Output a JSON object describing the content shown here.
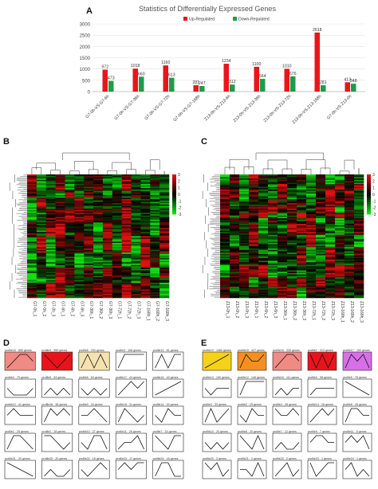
{
  "panel_labels": {
    "a": "A",
    "b": "B",
    "c": "C",
    "d": "D",
    "e": "E"
  },
  "chart_data": [
    {
      "type": "bar",
      "title": "Statistics of Differentially Expressed Genes",
      "categories": [
        "G7-0h-VS-G7-6h",
        "G7-0h-VS-G7-36h",
        "G7-0h-VS-G7-72h",
        "G7-0h-VS-G7-168h",
        "Z13-0h-VS-Z13-6h",
        "Z13-0h-VS-Z13-36h",
        "Z13-0h-VS-Z13-72h",
        "Z13-0h-VS-Z13-168h",
        "G7-0h-VS-Z13-0h"
      ],
      "series": [
        {
          "name": "Up-Regulated",
          "color": "#e8161b",
          "values": [
            972,
            1018,
            1160,
            281,
            1234,
            1100,
            1010,
            2618,
            413
          ]
        },
        {
          "name": "Down-Regulated",
          "color": "#1e9c4a",
          "values": [
            473,
            660,
            613,
            247,
            312,
            564,
            676,
            281,
            348
          ]
        }
      ],
      "ylim": [
        0,
        3000
      ],
      "yticks": [
        0,
        500,
        1000,
        1500,
        2000,
        2500,
        3000
      ],
      "legend": "top-center",
      "grid": true
    },
    {
      "type": "heatmap",
      "columns": [
        "G7-0h_1",
        "G7-0h_2",
        "G7-0h_3",
        "G7-6h_1",
        "G7-6h_2",
        "G7-6h_3",
        "G7-36h_1",
        "G7-36h_2",
        "G7-36h_3",
        "G7-72h_1",
        "G7-72h_2",
        "G7-72h_3",
        "G7-168h_1",
        "G7-168h_2",
        "G7-168h_3"
      ],
      "scale": [
        3,
        2,
        1,
        0,
        -1,
        -2,
        -3
      ],
      "colors": {
        "high": "#e01010",
        "mid": "#000000",
        "low": "#10e010"
      }
    },
    {
      "type": "heatmap",
      "columns": [
        "Z13-0h_1",
        "Z13-0h_2",
        "Z13-0h_3",
        "Z13-6h_1",
        "Z13-6h_2",
        "Z13-6h_3",
        "Z13-36h_1",
        "Z13-36h_2",
        "Z13-36h_3",
        "Z13-72h_1",
        "Z13-72h_2",
        "Z13-72h_3",
        "Z13-168h_1",
        "Z13-168h_2",
        "Z13-168h_3"
      ],
      "scale": [
        3,
        2,
        1,
        0,
        -1,
        -2,
        -3
      ],
      "colors": {
        "high": "#e01010",
        "mid": "#000000",
        "low": "#10e010"
      }
    }
  ],
  "profiles_d": [
    {
      "label": "profile16 · 850 genes",
      "color": "#f08a84",
      "points": [
        0,
        1,
        2,
        2,
        1
      ]
    },
    {
      "label": "profile4 · 550 genes",
      "color": "#e8141c",
      "points": [
        2,
        1,
        0,
        1,
        2
      ]
    },
    {
      "label": "profile8 · 233 genes",
      "color": "#f4e2b0",
      "points": [
        0,
        2,
        0,
        2,
        0
      ]
    },
    {
      "label": "profile3 · 108 genes",
      "color": "#ffffff",
      "points": [
        0,
        2,
        2,
        2,
        2
      ]
    },
    {
      "label": "profile13 · 81 genes",
      "color": "#ffffff",
      "points": [
        0,
        2,
        0,
        2,
        2
      ]
    },
    {
      "label": "profile0 · 75 genes",
      "color": "#ffffff",
      "points": [
        1,
        0,
        0,
        0,
        1
      ]
    },
    {
      "label": "profile5 · 63 genes",
      "color": "#ffffff",
      "points": [
        0,
        1,
        0,
        1,
        0
      ]
    },
    {
      "label": "profile6 · 54 genes",
      "color": "#ffffff",
      "points": [
        1,
        0,
        1,
        0,
        1
      ]
    },
    {
      "label": "profile17 · 44 genes",
      "color": "#ffffff",
      "points": [
        0,
        1,
        2,
        1,
        2
      ]
    },
    {
      "label": "profile19 · 43 genes",
      "color": "#ffffff",
      "points": [
        0,
        0.5,
        1,
        1.5,
        2
      ]
    },
    {
      "label": "profile12 · 41 genes",
      "color": "#ffffff",
      "points": [
        1,
        2,
        1,
        1,
        1
      ]
    },
    {
      "label": "profile18 · 36 genes",
      "color": "#ffffff",
      "points": [
        0,
        2,
        1,
        2,
        1
      ]
    },
    {
      "label": "profile9 · 34 genes",
      "color": "#ffffff",
      "points": [
        1,
        1,
        2,
        1,
        0
      ]
    },
    {
      "label": "profile15 · 31 genes",
      "color": "#ffffff",
      "points": [
        0,
        2,
        1,
        0,
        1
      ]
    },
    {
      "label": "profile14 · 30 genes",
      "color": "#ffffff",
      "points": [
        1,
        0,
        2,
        1,
        1
      ]
    },
    {
      "label": "profile1 · 29 genes",
      "color": "#ffffff",
      "points": [
        0,
        2,
        2,
        1,
        0
      ]
    },
    {
      "label": "profile2 · 28 genes",
      "color": "#ffffff",
      "points": [
        2,
        2,
        1,
        0,
        1
      ]
    },
    {
      "label": "profile10 · 27 genes",
      "color": "#ffffff",
      "points": [
        1,
        0,
        2,
        2,
        0
      ]
    },
    {
      "label": "profile11 · 26 genes",
      "color": "#ffffff",
      "points": [
        0,
        1,
        1,
        2,
        0
      ]
    },
    {
      "label": "profile7 · 24 genes",
      "color": "#ffffff",
      "points": [
        2,
        1,
        0,
        2,
        2
      ]
    },
    {
      "label": "profile21 · 20 genes",
      "color": "#ffffff",
      "points": [
        2,
        1.5,
        1,
        0.5,
        0
      ]
    },
    {
      "label": "profile20 · 20 genes",
      "color": "#ffffff",
      "points": [
        0,
        1,
        0,
        0,
        1
      ]
    },
    {
      "label": "profile22 · 18 genes",
      "color": "#ffffff",
      "points": [
        1,
        0,
        1,
        2,
        1
      ]
    },
    {
      "label": "profile23 · 17 genes",
      "color": "#ffffff",
      "points": [
        1,
        2,
        1,
        2,
        2
      ]
    },
    {
      "label": "profile24 · 16 genes",
      "color": "#ffffff",
      "points": [
        0,
        2,
        2,
        0,
        0
      ]
    }
  ],
  "profiles_e": [
    {
      "label": "profile19 · 1360 genes",
      "color": "#f5d118",
      "points": [
        0,
        0.5,
        1,
        1.5,
        2
      ]
    },
    {
      "label": "profile15 · 427 genes",
      "color": "#f5901e",
      "points": [
        0,
        2,
        1,
        1,
        2
      ]
    },
    {
      "label": "profile18 · 330 genes",
      "color": "#f08a84",
      "points": [
        0,
        1,
        2,
        2,
        1
      ]
    },
    {
      "label": "profile1 · 313 genes",
      "color": "#e8141c",
      "points": [
        2,
        0,
        2,
        0,
        2
      ]
    },
    {
      "label": "profile17 · 153 genes",
      "color": "#d96ee8",
      "points": [
        0,
        2,
        1,
        2,
        0
      ]
    },
    {
      "label": "profile13 · 190 genes",
      "color": "#ffffff",
      "points": [
        1,
        0,
        1,
        1,
        1
      ]
    },
    {
      "label": "profile12 · 146 genes",
      "color": "#ffffff",
      "points": [
        0,
        2,
        2,
        2,
        2
      ]
    },
    {
      "label": "profile16 · 111 genes",
      "color": "#ffffff",
      "points": [
        0,
        1,
        0,
        1,
        1
      ]
    },
    {
      "label": "profile0 · 98 genes",
      "color": "#ffffff",
      "points": [
        0,
        1,
        1,
        1,
        1
      ]
    },
    {
      "label": "profile5 · 78 genes",
      "color": "#ffffff",
      "points": [
        2,
        1.5,
        1,
        0.5,
        0
      ]
    },
    {
      "label": "profile3 · 33 genes",
      "color": "#ffffff",
      "points": [
        0,
        2,
        0,
        1,
        2
      ]
    },
    {
      "label": "profile2 · 29 genes",
      "color": "#ffffff",
      "points": [
        1,
        0,
        2,
        1,
        1
      ]
    },
    {
      "label": "profile4 · 28 genes",
      "color": "#ffffff",
      "points": [
        2,
        1,
        1,
        2,
        1
      ]
    },
    {
      "label": "profile14 · 26 genes",
      "color": "#ffffff",
      "points": [
        0,
        1,
        2,
        1,
        2
      ]
    },
    {
      "label": "profile6 · 25 genes",
      "color": "#ffffff",
      "points": [
        0,
        2,
        2,
        1,
        1
      ]
    },
    {
      "label": "profile10 · 20 genes",
      "color": "#ffffff",
      "points": [
        1,
        0,
        1,
        0,
        1
      ]
    },
    {
      "label": "profile8 · 20 genes",
      "color": "#ffffff",
      "points": [
        2,
        1,
        0,
        2,
        0
      ]
    },
    {
      "label": "profile7 · 12 genes",
      "color": "#ffffff",
      "points": [
        0,
        1,
        0,
        0,
        1
      ]
    },
    {
      "label": "profile9 · 7 genes",
      "color": "#ffffff",
      "points": [
        1,
        2,
        2,
        1,
        1
      ]
    },
    {
      "label": "profile11 · 5 genes",
      "color": "#ffffff",
      "points": [
        1,
        2,
        1,
        2,
        0
      ]
    },
    {
      "label": "profile20 · 3 genes",
      "color": "#ffffff",
      "points": [
        2,
        1,
        2,
        0,
        1
      ]
    },
    {
      "label": "profile21 · 2 genes",
      "color": "#ffffff",
      "points": [
        1,
        1,
        0,
        2,
        0
      ]
    },
    {
      "label": "profile22 · 2 genes",
      "color": "#ffffff",
      "points": [
        0,
        1,
        2,
        0,
        1
      ]
    },
    {
      "label": "profile23 · 1 genes",
      "color": "#ffffff",
      "points": [
        2,
        0,
        1,
        2,
        2
      ]
    },
    {
      "label": "profile24 · 1 genes",
      "color": "#ffffff",
      "points": [
        1,
        2,
        0,
        1,
        0
      ]
    }
  ]
}
